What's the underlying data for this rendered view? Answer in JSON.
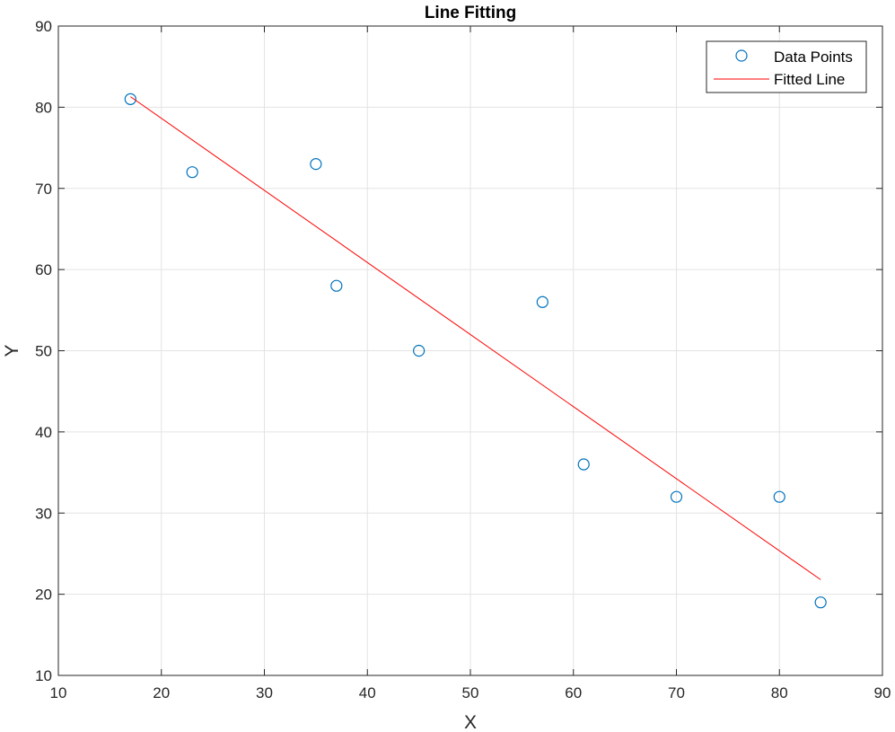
{
  "chart_data": {
    "type": "scatter",
    "title": "Line Fitting",
    "xlabel": "X",
    "ylabel": "Y",
    "xlim": [
      10,
      90
    ],
    "ylim": [
      10,
      90
    ],
    "xticks": [
      10,
      20,
      30,
      40,
      50,
      60,
      70,
      80,
      90
    ],
    "yticks": [
      10,
      20,
      30,
      40,
      50,
      60,
      70,
      80,
      90
    ],
    "grid": true,
    "legend_position": "top-right",
    "series": [
      {
        "name": "Data Points",
        "kind": "markers",
        "marker": "circle",
        "color": "#0072BD",
        "x": [
          17,
          23,
          35,
          37,
          45,
          57,
          61,
          70,
          80,
          84
        ],
        "y": [
          81,
          72,
          73,
          58,
          50,
          56,
          36,
          32,
          32,
          19
        ]
      },
      {
        "name": "Fitted Line",
        "kind": "line",
        "color": "#FF0000",
        "x": [
          17,
          84
        ],
        "y": [
          81.3,
          21.8
        ]
      }
    ]
  }
}
